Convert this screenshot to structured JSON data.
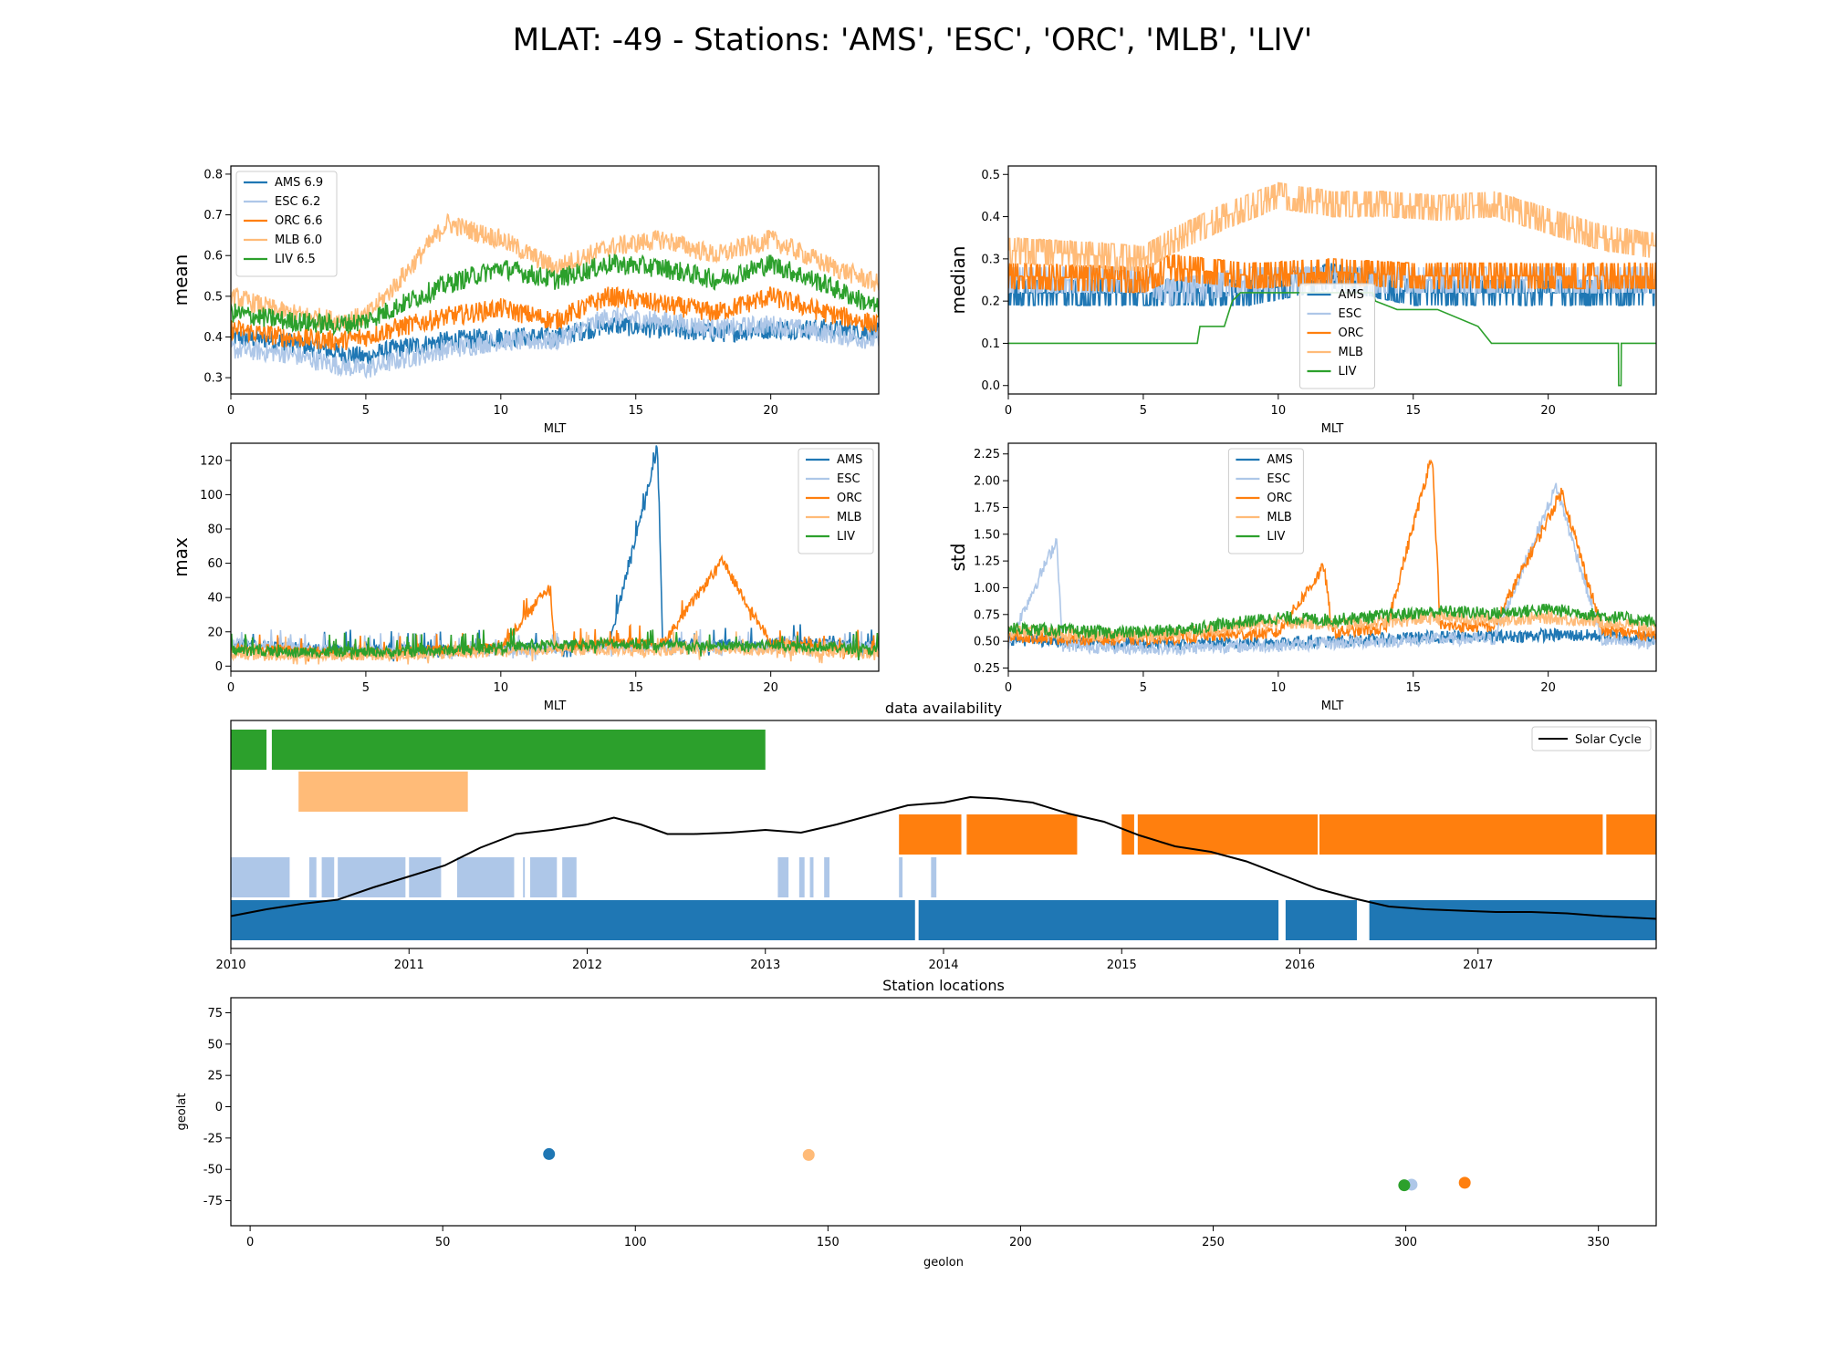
{
  "figure": {
    "title": "MLAT: -49 - Stations: 'AMS', 'ESC', 'ORC', 'MLB', 'LIV'"
  },
  "colors": {
    "AMS": "#1f77b4",
    "ESC": "#aec7e8",
    "ORC": "#ff7f0e",
    "MLB": "#ffbb78",
    "LIV": "#2ca02c",
    "solar": "#000000"
  },
  "chart_data": [
    {
      "id": "mean",
      "type": "line",
      "xlabel": "MLT",
      "ylabel": "mean",
      "xlim": [
        0,
        24
      ],
      "ylim": [
        0.26,
        0.82
      ],
      "xticks": [
        0,
        5,
        10,
        15,
        20
      ],
      "yticks": [
        0.3,
        0.4,
        0.5,
        0.6,
        0.7,
        0.8
      ],
      "legend_position": "upper-left",
      "legend": [
        "AMS 6.9",
        "ESC 6.2",
        "ORC 6.6",
        "MLB 6.0",
        "LIV 6.5"
      ],
      "series": [
        {
          "name": "AMS",
          "x": [
            0,
            2,
            4,
            5,
            6,
            8,
            10,
            12,
            14,
            16,
            18,
            20,
            22,
            24
          ],
          "values": [
            0.4,
            0.39,
            0.36,
            0.35,
            0.37,
            0.39,
            0.4,
            0.4,
            0.43,
            0.42,
            0.41,
            0.42,
            0.42,
            0.41
          ]
        },
        {
          "name": "ESC",
          "x": [
            0,
            2,
            4,
            5,
            6,
            8,
            10,
            12,
            14,
            16,
            18,
            20,
            22,
            24
          ],
          "values": [
            0.37,
            0.36,
            0.33,
            0.32,
            0.34,
            0.37,
            0.39,
            0.39,
            0.45,
            0.44,
            0.42,
            0.43,
            0.41,
            0.39
          ]
        },
        {
          "name": "ORC",
          "x": [
            0,
            2,
            4,
            5,
            6,
            8,
            10,
            12,
            14,
            16,
            18,
            20,
            22,
            24
          ],
          "values": [
            0.42,
            0.4,
            0.39,
            0.4,
            0.42,
            0.45,
            0.47,
            0.44,
            0.5,
            0.48,
            0.46,
            0.5,
            0.46,
            0.43
          ]
        },
        {
          "name": "MLB",
          "x": [
            0,
            2,
            4,
            5,
            6,
            8,
            10,
            12,
            14,
            16,
            18,
            20,
            22,
            24
          ],
          "values": [
            0.5,
            0.46,
            0.44,
            0.45,
            0.52,
            0.68,
            0.64,
            0.57,
            0.62,
            0.64,
            0.6,
            0.64,
            0.58,
            0.53
          ]
        },
        {
          "name": "LIV",
          "x": [
            0,
            2,
            4,
            5,
            6,
            8,
            10,
            12,
            14,
            16,
            18,
            20,
            22,
            24
          ],
          "values": [
            0.46,
            0.44,
            0.43,
            0.44,
            0.47,
            0.53,
            0.57,
            0.54,
            0.58,
            0.57,
            0.54,
            0.58,
            0.53,
            0.47
          ]
        }
      ]
    },
    {
      "id": "median",
      "type": "line",
      "xlabel": "MLT",
      "ylabel": "median",
      "xlim": [
        0,
        24
      ],
      "ylim": [
        -0.02,
        0.52
      ],
      "xticks": [
        0,
        5,
        10,
        15,
        20
      ],
      "yticks": [
        0.0,
        0.1,
        0.2,
        0.3,
        0.4,
        0.5
      ],
      "legend_position": "lower-center",
      "legend": [
        "AMS",
        "ESC",
        "ORC",
        "MLB",
        "LIV"
      ],
      "series": [
        {
          "name": "AMS",
          "x": [
            0,
            5,
            6,
            9,
            12,
            15,
            16,
            24
          ],
          "values": [
            0.22,
            0.22,
            0.22,
            0.22,
            0.26,
            0.22,
            0.22,
            0.22
          ]
        },
        {
          "name": "ESC",
          "x": [
            0,
            5,
            6,
            9,
            12,
            15,
            16,
            24
          ],
          "values": [
            0.25,
            0.25,
            0.22,
            0.25,
            0.25,
            0.25,
            0.25,
            0.25
          ]
        },
        {
          "name": "ORC",
          "x": [
            0,
            5,
            6,
            9,
            12,
            15,
            16,
            24
          ],
          "values": [
            0.26,
            0.25,
            0.28,
            0.26,
            0.27,
            0.26,
            0.26,
            0.26
          ]
        },
        {
          "name": "MLB",
          "x": [
            0,
            3,
            5,
            6,
            8,
            10,
            12,
            14,
            16,
            18,
            20,
            22,
            24
          ],
          "values": [
            0.32,
            0.31,
            0.3,
            0.34,
            0.4,
            0.45,
            0.43,
            0.43,
            0.42,
            0.43,
            0.39,
            0.35,
            0.33
          ]
        },
        {
          "name": "LIV",
          "x": [
            0,
            7,
            7.1,
            8,
            8.3,
            8.6,
            10,
            13.5,
            13.6,
            14.4,
            15.9,
            17.4,
            17.9,
            22.6,
            22.61,
            22.7,
            22.71,
            24
          ],
          "values": [
            0.1,
            0.1,
            0.14,
            0.14,
            0.2,
            0.22,
            0.22,
            0.22,
            0.2,
            0.18,
            0.18,
            0.14,
            0.1,
            0.1,
            0.0,
            0.0,
            0.1,
            0.1
          ]
        }
      ]
    },
    {
      "id": "max",
      "type": "line",
      "xlabel": "MLT",
      "ylabel": "max",
      "xlim": [
        0,
        24
      ],
      "ylim": [
        -3,
        130
      ],
      "xticks": [
        0,
        5,
        10,
        15,
        20
      ],
      "yticks": [
        0,
        20,
        40,
        60,
        80,
        100,
        120
      ],
      "legend_position": "upper-right",
      "legend": [
        "AMS",
        "ESC",
        "ORC",
        "MLB",
        "LIV"
      ],
      "series": [
        {
          "name": "AMS",
          "x": [
            0,
            2,
            4,
            6,
            8,
            10,
            12,
            14,
            15.8,
            16,
            18,
            20,
            22,
            24
          ],
          "values": [
            12,
            10,
            9,
            8,
            8,
            9,
            10,
            11,
            125,
            12,
            11,
            12,
            12,
            10
          ]
        },
        {
          "name": "ESC",
          "x": [
            0,
            2,
            4,
            6,
            8,
            10,
            12,
            14,
            16,
            18,
            20,
            22,
            24
          ],
          "values": [
            12,
            10,
            8,
            7,
            7,
            8,
            9,
            10,
            10,
            9,
            10,
            11,
            10
          ]
        },
        {
          "name": "ORC",
          "x": [
            0,
            2,
            4,
            6,
            8,
            10,
            11.8,
            12,
            14,
            16,
            18.2,
            20,
            22,
            24
          ],
          "values": [
            9,
            8,
            7,
            7,
            8,
            10,
            45,
            10,
            12,
            12,
            60,
            12,
            10,
            8
          ]
        },
        {
          "name": "MLB",
          "x": [
            0,
            2,
            4,
            6,
            8,
            10,
            12,
            14,
            16,
            18,
            20,
            22,
            24
          ],
          "values": [
            6,
            5,
            5,
            5,
            6,
            7,
            8,
            8,
            8,
            8,
            8,
            7,
            6
          ]
        },
        {
          "name": "LIV",
          "x": [
            0,
            2,
            4,
            6,
            8,
            10,
            12,
            14,
            16,
            18,
            20,
            22,
            24
          ],
          "values": [
            8,
            7,
            7,
            7,
            8,
            10,
            11,
            12,
            11,
            10,
            11,
            10,
            8
          ]
        }
      ]
    },
    {
      "id": "std",
      "type": "line",
      "xlabel": "MLT",
      "ylabel": "std",
      "xlim": [
        0,
        24
      ],
      "ylim": [
        0.22,
        2.35
      ],
      "xticks": [
        0,
        5,
        10,
        15,
        20
      ],
      "yticks": [
        0.25,
        0.5,
        0.75,
        1.0,
        1.25,
        1.5,
        1.75,
        2.0,
        2.25
      ],
      "legend_position": "upper-left",
      "legend": [
        "AMS",
        "ESC",
        "ORC",
        "MLB",
        "LIV"
      ],
      "series": [
        {
          "name": "AMS",
          "x": [
            0,
            2,
            4,
            6,
            8,
            10,
            12,
            14,
            16,
            18,
            20,
            22,
            24
          ],
          "values": [
            0.52,
            0.5,
            0.48,
            0.47,
            0.48,
            0.49,
            0.5,
            0.52,
            0.54,
            0.54,
            0.56,
            0.55,
            0.52
          ]
        },
        {
          "name": "ESC",
          "x": [
            0,
            1.8,
            2,
            4,
            6,
            8,
            10,
            12,
            14,
            16,
            18,
            20.3,
            22,
            24
          ],
          "values": [
            0.48,
            1.45,
            0.46,
            0.44,
            0.43,
            0.45,
            0.46,
            0.48,
            0.5,
            0.52,
            0.52,
            1.95,
            0.5,
            0.48
          ]
        },
        {
          "name": "ORC",
          "x": [
            0,
            2,
            4,
            6,
            8,
            10,
            11.7,
            12,
            14,
            15.7,
            16,
            18,
            20.5,
            22,
            24
          ],
          "values": [
            0.55,
            0.53,
            0.52,
            0.53,
            0.56,
            0.58,
            1.2,
            0.58,
            0.62,
            2.25,
            0.64,
            0.64,
            1.9,
            0.6,
            0.56
          ]
        },
        {
          "name": "MLB",
          "x": [
            0,
            2,
            4,
            6,
            8,
            10,
            12,
            14,
            16,
            18,
            20,
            22,
            24
          ],
          "values": [
            0.6,
            0.57,
            0.55,
            0.56,
            0.62,
            0.68,
            0.66,
            0.68,
            0.72,
            0.7,
            0.72,
            0.68,
            0.62
          ]
        },
        {
          "name": "LIV",
          "x": [
            0,
            2,
            4,
            6,
            8,
            10,
            12,
            14,
            16,
            18,
            20,
            22,
            24
          ],
          "values": [
            0.62,
            0.6,
            0.58,
            0.6,
            0.66,
            0.72,
            0.7,
            0.74,
            0.78,
            0.76,
            0.8,
            0.74,
            0.68
          ]
        }
      ]
    },
    {
      "id": "availability",
      "type": "bar",
      "title": "data availability",
      "xlim": [
        2010.0,
        2018.0
      ],
      "xticks": [
        2010,
        2011,
        2012,
        2013,
        2014,
        2015,
        2016,
        2017
      ],
      "xticklabels": [
        "2010",
        "2011",
        "2012",
        "2013",
        "2014",
        "2015",
        "2016",
        "2017"
      ],
      "legend": [
        "Solar Cycle"
      ],
      "legend_position": "upper-right",
      "rows": [
        {
          "name": "LIV",
          "intervals": [
            [
              2010.0,
              2010.2
            ],
            [
              2010.23,
              2013.0
            ]
          ]
        },
        {
          "name": "MLB",
          "intervals": [
            [
              2010.38,
              2011.33
            ]
          ]
        },
        {
          "name": "ORC",
          "intervals": [
            [
              2013.75,
              2014.1
            ],
            [
              2014.13,
              2014.75
            ],
            [
              2015.0,
              2015.07
            ],
            [
              2015.09,
              2016.1
            ],
            [
              2016.11,
              2017.7
            ],
            [
              2017.72,
              2018.0
            ]
          ]
        },
        {
          "name": "ESC",
          "intervals": [
            [
              2010.0,
              2010.33
            ],
            [
              2010.44,
              2010.48
            ],
            [
              2010.51,
              2010.58
            ],
            [
              2010.6,
              2010.98
            ],
            [
              2011.0,
              2011.18
            ],
            [
              2011.27,
              2011.59
            ],
            [
              2011.64,
              2011.65
            ],
            [
              2011.68,
              2011.83
            ],
            [
              2011.86,
              2011.94
            ],
            [
              2013.07,
              2013.13
            ],
            [
              2013.19,
              2013.22
            ],
            [
              2013.25,
              2013.27
            ],
            [
              2013.33,
              2013.36
            ],
            [
              2013.75,
              2013.77
            ],
            [
              2013.93,
              2013.96
            ]
          ]
        },
        {
          "name": "AMS",
          "intervals": [
            [
              2010.0,
              2013.84
            ],
            [
              2013.86,
              2015.88
            ],
            [
              2015.92,
              2016.32
            ],
            [
              2016.39,
              2018.0
            ]
          ]
        }
      ],
      "solar_cycle": {
        "name": "Solar Cycle",
        "x": [
          2010.0,
          2010.2,
          2010.4,
          2010.6,
          2010.8,
          2011.0,
          2011.2,
          2011.4,
          2011.6,
          2011.8,
          2012.0,
          2012.15,
          2012.3,
          2012.45,
          2012.6,
          2012.8,
          2013.0,
          2013.2,
          2013.4,
          2013.6,
          2013.8,
          2014.0,
          2014.15,
          2014.3,
          2014.5,
          2014.7,
          2014.9,
          2015.1,
          2015.3,
          2015.5,
          2015.7,
          2015.9,
          2016.1,
          2016.3,
          2016.5,
          2016.7,
          2016.9,
          2017.1,
          2017.3,
          2017.5,
          2017.7,
          2017.85,
          2018.0
        ],
        "values": [
          0.05,
          0.1,
          0.14,
          0.17,
          0.26,
          0.34,
          0.42,
          0.55,
          0.65,
          0.68,
          0.72,
          0.77,
          0.72,
          0.65,
          0.65,
          0.66,
          0.68,
          0.66,
          0.72,
          0.79,
          0.86,
          0.88,
          0.92,
          0.91,
          0.88,
          0.8,
          0.74,
          0.64,
          0.56,
          0.52,
          0.45,
          0.35,
          0.25,
          0.18,
          0.12,
          0.1,
          0.09,
          0.08,
          0.08,
          0.07,
          0.05,
          0.04,
          0.03
        ]
      }
    },
    {
      "id": "locations",
      "type": "scatter",
      "title": "Station locations",
      "xlabel": "geolon",
      "ylabel": "geolat",
      "xlim": [
        -5,
        365
      ],
      "ylim": [
        -95,
        87
      ],
      "xticks": [
        0,
        50,
        100,
        150,
        200,
        250,
        300,
        350
      ],
      "yticks": [
        -75,
        -50,
        -25,
        0,
        25,
        50,
        75
      ],
      "points": [
        {
          "name": "AMS",
          "x": 77.6,
          "y": -37.8
        },
        {
          "name": "MLB",
          "x": 145.0,
          "y": -38.5
        },
        {
          "name": "ESC",
          "x": 301.5,
          "y": -62.2
        },
        {
          "name": "LIV",
          "x": 299.6,
          "y": -62.7
        },
        {
          "name": "ORC",
          "x": 315.3,
          "y": -60.7
        }
      ]
    }
  ]
}
